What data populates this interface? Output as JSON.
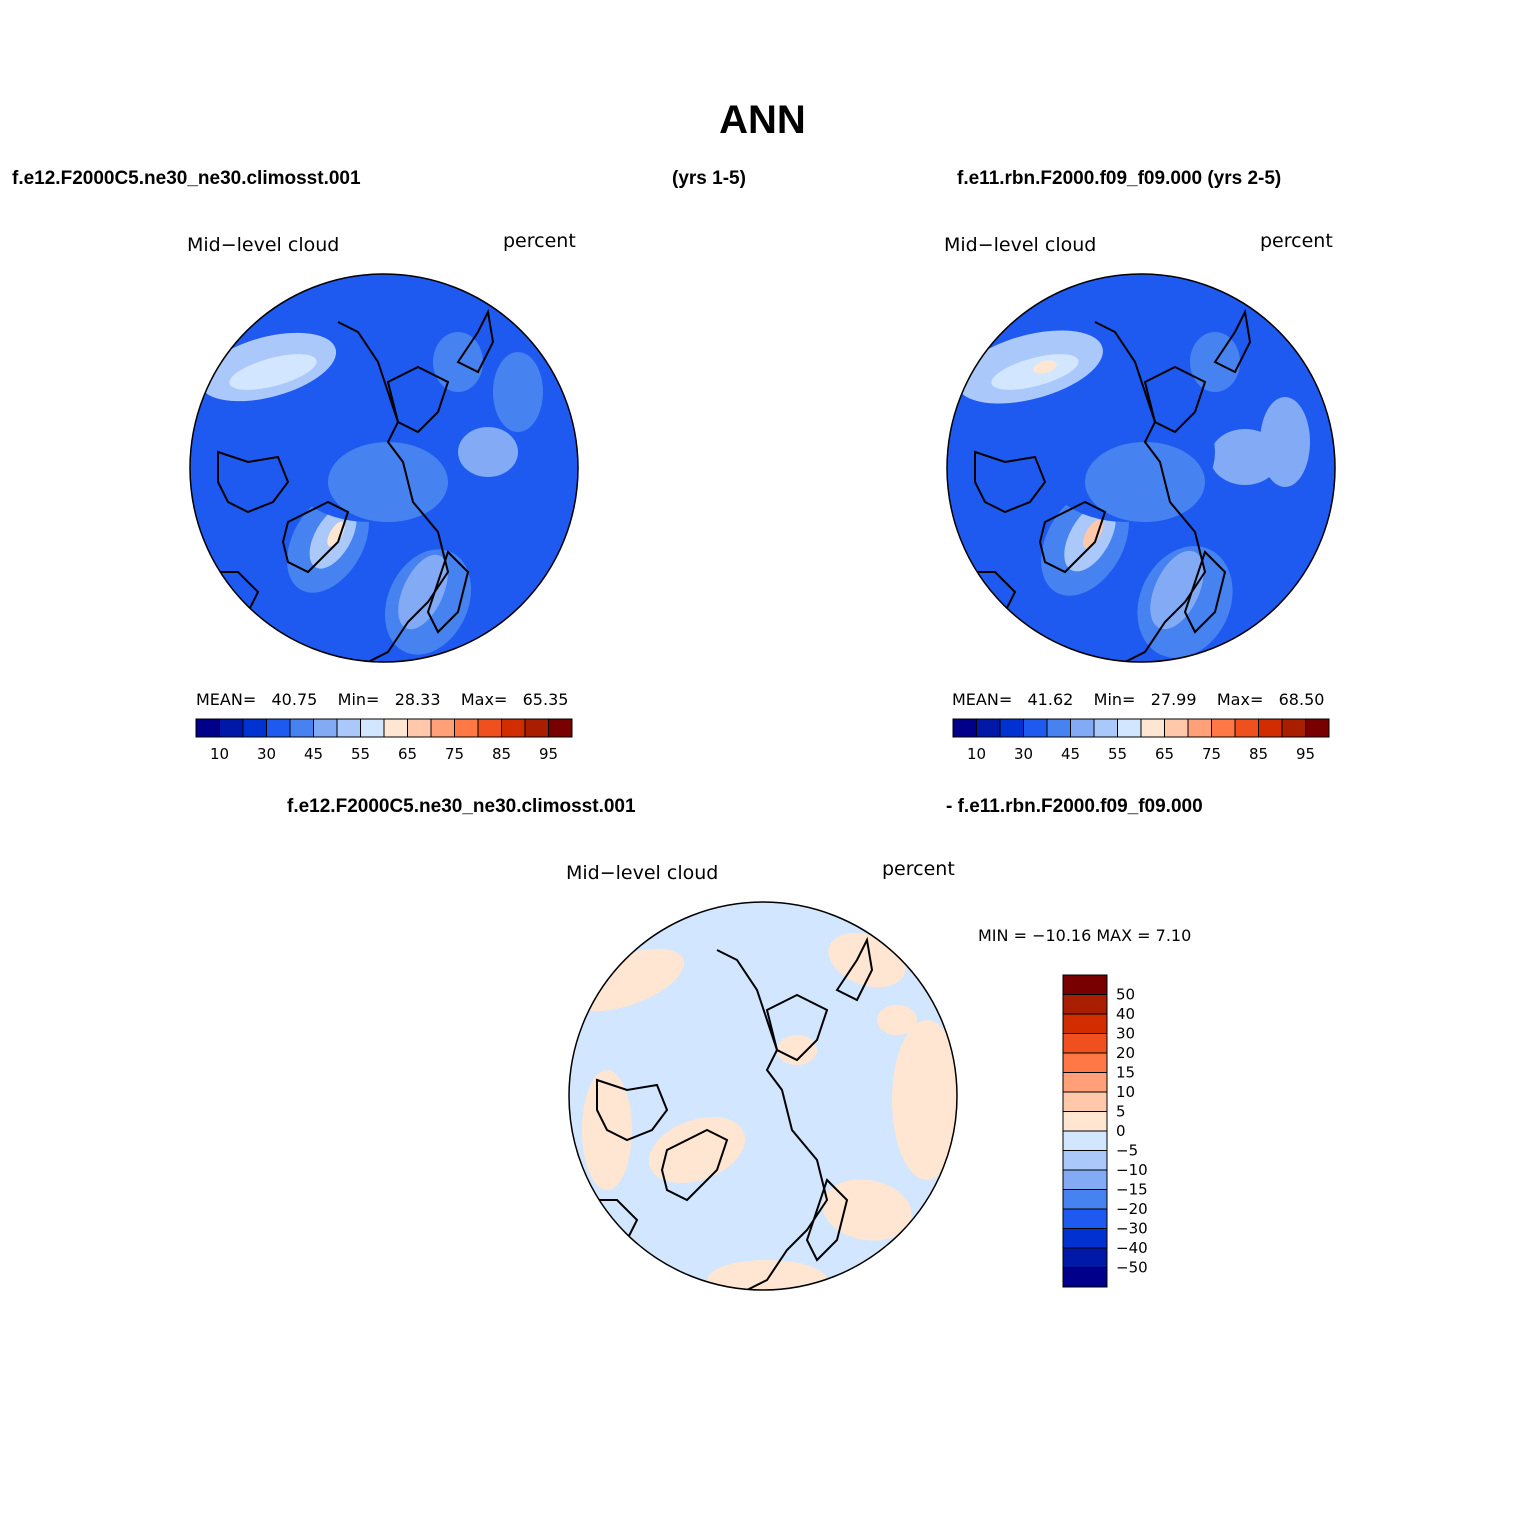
{
  "title": "ANN",
  "headers": {
    "top_left": "f.e12.F2000C5.ne30_ne30.climosst.001",
    "top_mid": "(yrs 1-5)",
    "top_right": "f.e11.rbn.F2000.f09_f09.000 (yrs 2-5)",
    "diff_left": "f.e12.F2000C5.ne30_ne30.climosst.001",
    "diff_right": "- f.e11.rbn.F2000.f09_f09.000"
  },
  "panels": [
    {
      "id": "case1",
      "variable": "Mid−level cloud",
      "units": "percent",
      "stats": {
        "mean_label": "MEAN=",
        "mean": "40.75",
        "min_label": "Min=",
        "min": "28.33",
        "max_label": "Max=",
        "max": "65.35"
      }
    },
    {
      "id": "case2",
      "variable": "Mid−level cloud",
      "units": "percent",
      "stats": {
        "mean_label": "MEAN=",
        "mean": "41.62",
        "min_label": "Min=",
        "min": "27.99",
        "max_label": "Max=",
        "max": "68.50"
      }
    },
    {
      "id": "diff",
      "variable": "Mid−level cloud",
      "units": "percent",
      "stats": {
        "text": "MIN = −10.16 MAX =    7.10"
      }
    }
  ],
  "colorbar_main": {
    "colors": [
      "#00008b",
      "#0018a8",
      "#0032d2",
      "#1e5af0",
      "#4682f0",
      "#82aaf5",
      "#aac8fa",
      "#d2e6ff",
      "#ffe6d2",
      "#ffc8aa",
      "#ffa078",
      "#ff7846",
      "#f0501e",
      "#d22d00",
      "#aa1e00",
      "#780000"
    ],
    "labels": [
      "10",
      "30",
      "45",
      "55",
      "65",
      "75",
      "85",
      "95"
    ]
  },
  "colorbar_diff": {
    "colors": [
      "#780000",
      "#aa1e00",
      "#d22d00",
      "#f0501e",
      "#ff7846",
      "#ffa078",
      "#ffc8aa",
      "#ffe6d2",
      "#d2e6ff",
      "#aac8fa",
      "#82aaf5",
      "#4682f0",
      "#1e5af0",
      "#0032d2",
      "#0018a8",
      "#00008b"
    ],
    "labels": [
      "50",
      "40",
      "30",
      "20",
      "15",
      "10",
      "5",
      "0",
      "−5",
      "−10",
      "−15",
      "−20",
      "−30",
      "−40",
      "−50"
    ]
  }
}
